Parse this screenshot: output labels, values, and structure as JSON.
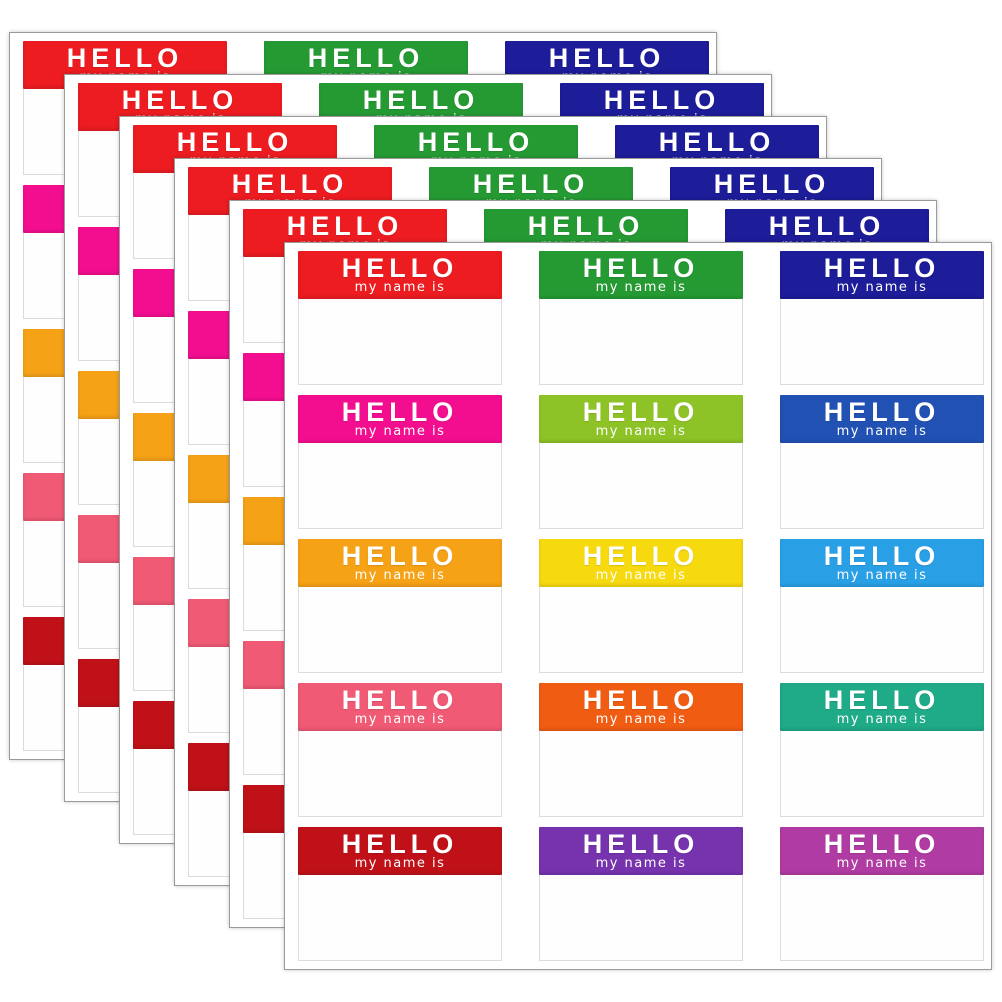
{
  "photo": {
    "background_color": "#ffffff",
    "subject": "hello-name-tag-sticker-sheets"
  },
  "sticker": {
    "headline": "HELLO",
    "subline": "my name is",
    "text_color": "#ffffff"
  },
  "sheets": {
    "count": 6,
    "rows": 5,
    "cols": 3
  },
  "grid": {
    "header_colors": [
      [
        "#ec1c21",
        "#259a33",
        "#1d1c99"
      ],
      [
        "#f30e90",
        "#8ec327",
        "#2152b3"
      ],
      [
        "#f5a217",
        "#f6d90f",
        "#29a0e6"
      ],
      [
        "#f05a74",
        "#f05c12",
        "#1faa88"
      ],
      [
        "#c01118",
        "#7633ad",
        "#b03ba3"
      ]
    ],
    "color_names": [
      [
        "red",
        "green",
        "navy-blue"
      ],
      [
        "magenta",
        "yellow-green",
        "royal-blue"
      ],
      [
        "orange",
        "yellow",
        "sky-blue"
      ],
      [
        "salmon-pink",
        "orange-red",
        "teal-green"
      ],
      [
        "dark-red",
        "purple",
        "orchid-purple"
      ]
    ]
  }
}
